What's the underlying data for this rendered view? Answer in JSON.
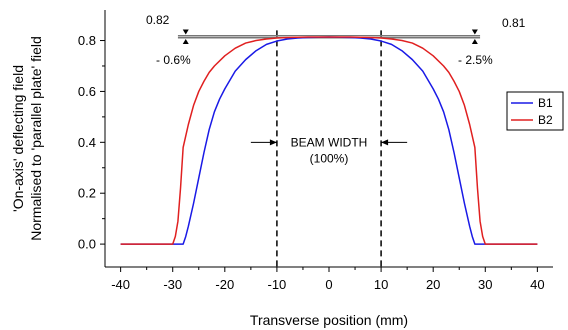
{
  "chart_data": {
    "type": "line",
    "xlabel": "Transverse position (mm)",
    "ylabel_lines": [
      "'On-axis' deflecting field",
      "Normalised to 'parallel plate' field"
    ],
    "xlim": [
      -43,
      43
    ],
    "ylim": [
      -0.09,
      0.92
    ],
    "xticks": [
      -40,
      -30,
      -20,
      -10,
      0,
      10,
      20,
      30,
      40
    ],
    "yticks": [
      0.0,
      0.2,
      0.4,
      0.6,
      0.8
    ],
    "ytick_labels": [
      "0.0",
      "0.2",
      "0.4",
      "0.6",
      "0.8"
    ],
    "legend_position": "right",
    "series": [
      {
        "name": "B1",
        "color": "#1a1ae6",
        "x": [
          -40,
          -28,
          -27.5,
          -27,
          -26,
          -25,
          -24,
          -23,
          -22,
          -21,
          -20,
          -18,
          -16,
          -14,
          -12,
          -10,
          -8,
          -6,
          -4,
          -2,
          0,
          2,
          4,
          6,
          8,
          10,
          12,
          14,
          16,
          18,
          20,
          21,
          22,
          23,
          24,
          25,
          26,
          27,
          27.5,
          28,
          40
        ],
        "y": [
          0.0,
          0.0,
          0.03,
          0.07,
          0.16,
          0.26,
          0.36,
          0.45,
          0.52,
          0.57,
          0.61,
          0.68,
          0.725,
          0.76,
          0.785,
          0.798,
          0.806,
          0.81,
          0.812,
          0.813,
          0.814,
          0.813,
          0.812,
          0.81,
          0.806,
          0.798,
          0.785,
          0.76,
          0.725,
          0.68,
          0.61,
          0.57,
          0.52,
          0.45,
          0.36,
          0.26,
          0.16,
          0.07,
          0.03,
          0.0,
          0.0
        ]
      },
      {
        "name": "B2",
        "color": "#e02020",
        "x": [
          -40,
          -30,
          -29.5,
          -29,
          -28.5,
          -28,
          -27,
          -26,
          -25,
          -24,
          -23,
          -22,
          -20,
          -18,
          -16,
          -14,
          -12,
          -10,
          -8,
          -6,
          -4,
          -2,
          0,
          2,
          4,
          6,
          8,
          10,
          12,
          14,
          16,
          18,
          20,
          22,
          23,
          24,
          25,
          26,
          27,
          28,
          28.5,
          29,
          29.5,
          30,
          40
        ],
        "y": [
          0.0,
          0.0,
          0.03,
          0.09,
          0.22,
          0.38,
          0.47,
          0.545,
          0.6,
          0.64,
          0.675,
          0.7,
          0.74,
          0.77,
          0.79,
          0.8,
          0.806,
          0.81,
          0.812,
          0.813,
          0.814,
          0.814,
          0.814,
          0.814,
          0.814,
          0.813,
          0.812,
          0.81,
          0.806,
          0.8,
          0.79,
          0.77,
          0.74,
          0.7,
          0.675,
          0.64,
          0.6,
          0.545,
          0.47,
          0.38,
          0.22,
          0.09,
          0.03,
          0.0,
          0.0
        ]
      }
    ],
    "annotations": {
      "left_value": "0.82",
      "right_value": "0.81",
      "left_pct": "- 0.6%",
      "right_pct": "- 2.5%",
      "beam_width_label": "BEAM WIDTH",
      "beam_width_pct": "(100%)",
      "beam_edges": [
        -10,
        10
      ],
      "reference_lines": [
        0.82,
        0.814,
        0.81
      ],
      "reference_range": [
        -29,
        29
      ]
    }
  }
}
